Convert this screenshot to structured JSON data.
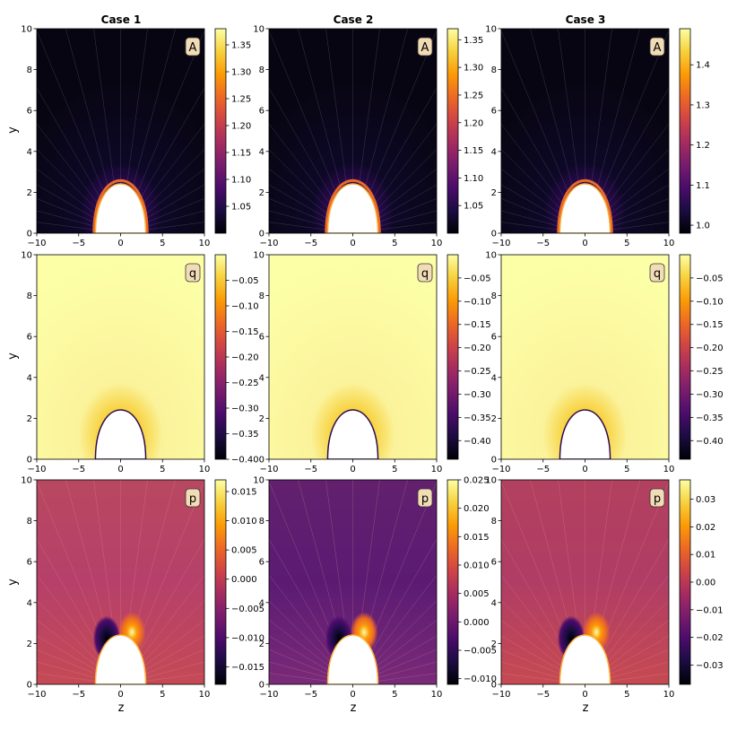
{
  "colors": {
    "bg": "#ffffff",
    "badge_fill": "#f1dcb6",
    "badge_stroke": "#333333",
    "colormap": "inferno"
  },
  "case_titles": [
    "Case 1",
    "Case 2",
    "Case 3"
  ],
  "axis_labels": {
    "y": "y",
    "z": "z"
  },
  "chart_data": [
    {
      "type": "heatmap",
      "case": "Case 1",
      "field": "A",
      "label": "A",
      "xlim": [
        -10,
        10
      ],
      "ylim": [
        0,
        10
      ],
      "xticks": [
        -10,
        -5,
        0,
        5,
        10
      ],
      "yticks": [
        0,
        2,
        4,
        6,
        8,
        10
      ],
      "xlabel": "",
      "ylabel": "y",
      "cbar_range": [
        1.0,
        1.38
      ],
      "cbar_ticks": [
        1.05,
        1.1,
        1.15,
        1.2,
        1.25,
        1.3,
        1.35
      ],
      "cbar_tick_labels": [
        "1.05",
        "1.10",
        "1.15",
        "1.20",
        "1.25",
        "1.30",
        "1.35"
      ],
      "obstacle_height": 3.0,
      "obstacle_half_width": 3.0
    },
    {
      "type": "heatmap",
      "case": "Case 2",
      "field": "A",
      "label": "A",
      "xlim": [
        -10,
        10
      ],
      "ylim": [
        0,
        10
      ],
      "xticks": [
        -10,
        -5,
        0,
        5,
        10
      ],
      "yticks": [
        0,
        2,
        4,
        6,
        8,
        10
      ],
      "xlabel": "",
      "ylabel": "",
      "cbar_range": [
        1.0,
        1.37
      ],
      "cbar_ticks": [
        1.05,
        1.1,
        1.15,
        1.2,
        1.25,
        1.3,
        1.35
      ],
      "cbar_tick_labels": [
        "1.05",
        "1.10",
        "1.15",
        "1.20",
        "1.25",
        "1.30",
        "1.35"
      ],
      "obstacle_height": 3.0,
      "obstacle_half_width": 3.0
    },
    {
      "type": "heatmap",
      "case": "Case 3",
      "field": "A",
      "label": "A",
      "xlim": [
        -10,
        10
      ],
      "ylim": [
        0,
        10
      ],
      "xticks": [
        -10,
        -5,
        0,
        5,
        10
      ],
      "yticks": [
        0,
        2,
        4,
        6,
        8,
        10
      ],
      "xlabel": "",
      "ylabel": "",
      "cbar_range": [
        0.98,
        1.49
      ],
      "cbar_ticks": [
        1.0,
        1.1,
        1.2,
        1.3,
        1.4
      ],
      "cbar_tick_labels": [
        "1.0",
        "1.1",
        "1.2",
        "1.3",
        "1.4"
      ],
      "obstacle_height": 3.0,
      "obstacle_half_width": 3.0
    },
    {
      "type": "heatmap",
      "case": "Case 1",
      "field": "q",
      "label": "q",
      "xlim": [
        -10,
        10
      ],
      "ylim": [
        0,
        10
      ],
      "xticks": [
        -10,
        -5,
        0,
        5,
        10
      ],
      "yticks": [
        0,
        2,
        4,
        6,
        8,
        10
      ],
      "xlabel": "",
      "ylabel": "y",
      "cbar_range": [
        -0.4,
        0.0
      ],
      "cbar_ticks": [
        -0.05,
        -0.1,
        -0.15,
        -0.2,
        -0.25,
        -0.3,
        -0.35,
        -0.4
      ],
      "cbar_tick_labels": [
        "−0.05",
        "−0.10",
        "−0.15",
        "−0.20",
        "−0.25",
        "−0.30",
        "−0.35",
        "−0.40"
      ],
      "obstacle_height": 3.0,
      "obstacle_half_width": 3.0
    },
    {
      "type": "heatmap",
      "case": "Case 2",
      "field": "q",
      "label": "q",
      "xlim": [
        -10,
        10
      ],
      "ylim": [
        0,
        10
      ],
      "xticks": [
        -10,
        -5,
        0,
        5,
        10
      ],
      "yticks": [
        0,
        2,
        4,
        6,
        8,
        10
      ],
      "xlabel": "",
      "ylabel": "",
      "cbar_range": [
        -0.44,
        0.0
      ],
      "cbar_ticks": [
        -0.05,
        -0.1,
        -0.15,
        -0.2,
        -0.25,
        -0.3,
        -0.35,
        -0.4
      ],
      "cbar_tick_labels": [
        "−0.05",
        "−0.10",
        "−0.15",
        "−0.20",
        "−0.25",
        "−0.30",
        "−0.35",
        "−0.40"
      ],
      "obstacle_height": 3.0,
      "obstacle_half_width": 3.0
    },
    {
      "type": "heatmap",
      "case": "Case 3",
      "field": "q",
      "label": "q",
      "xlim": [
        -10,
        10
      ],
      "ylim": [
        0,
        10
      ],
      "xticks": [
        -10,
        -5,
        0,
        5,
        10
      ],
      "yticks": [
        0,
        2,
        4,
        6,
        8,
        10
      ],
      "xlabel": "",
      "ylabel": "",
      "cbar_range": [
        -0.44,
        0.0
      ],
      "cbar_ticks": [
        -0.05,
        -0.1,
        -0.15,
        -0.2,
        -0.25,
        -0.3,
        -0.35,
        -0.4
      ],
      "cbar_tick_labels": [
        "−0.05",
        "−0.10",
        "−0.15",
        "−0.20",
        "−0.25",
        "−0.30",
        "−0.35",
        "−0.40"
      ],
      "obstacle_height": 3.0,
      "obstacle_half_width": 3.0
    },
    {
      "type": "heatmap",
      "case": "Case 1",
      "field": "p",
      "label": "p",
      "xlim": [
        -10,
        10
      ],
      "ylim": [
        0,
        10
      ],
      "xticks": [
        -10,
        -5,
        0,
        5,
        10
      ],
      "yticks": [
        0,
        2,
        4,
        6,
        8,
        10
      ],
      "xlabel": "z",
      "ylabel": "y",
      "cbar_range": [
        -0.018,
        0.017
      ],
      "cbar_ticks": [
        0.015,
        0.01,
        0.005,
        0.0,
        -0.005,
        -0.01,
        -0.015
      ],
      "cbar_tick_labels": [
        "0.015",
        "0.010",
        "0.005",
        "0.000",
        "−0.005",
        "−0.010",
        "−0.015"
      ],
      "obstacle_height": 3.0,
      "obstacle_half_width": 3.0
    },
    {
      "type": "heatmap",
      "case": "Case 2",
      "field": "p",
      "label": "p",
      "xlim": [
        -10,
        10
      ],
      "ylim": [
        0,
        10
      ],
      "xticks": [
        -10,
        -5,
        0,
        5,
        10
      ],
      "yticks": [
        0,
        2,
        4,
        6,
        8,
        10
      ],
      "xlabel": "z",
      "ylabel": "",
      "cbar_range": [
        -0.011,
        0.025
      ],
      "cbar_ticks": [
        0.025,
        0.02,
        0.015,
        0.01,
        0.005,
        0.0,
        -0.005,
        -0.01
      ],
      "cbar_tick_labels": [
        "0.025",
        "0.020",
        "0.015",
        "0.010",
        "0.005",
        "0.000",
        "−0.005",
        "−0.010"
      ],
      "obstacle_height": 3.0,
      "obstacle_half_width": 3.0
    },
    {
      "type": "heatmap",
      "case": "Case 3",
      "field": "p",
      "label": "p",
      "xlim": [
        -10,
        10
      ],
      "ylim": [
        0,
        10
      ],
      "xticks": [
        -10,
        -5,
        0,
        5,
        10
      ],
      "yticks": [
        0,
        2,
        4,
        6,
        8,
        10
      ],
      "xlabel": "z",
      "ylabel": "",
      "cbar_range": [
        -0.037,
        0.037
      ],
      "cbar_ticks": [
        0.03,
        0.02,
        0.01,
        0.0,
        -0.01,
        -0.02,
        -0.03
      ],
      "cbar_tick_labels": [
        "0.03",
        "0.02",
        "0.01",
        "0.00",
        "−0.01",
        "−0.02",
        "−0.03"
      ],
      "obstacle_height": 3.0,
      "obstacle_half_width": 3.0
    }
  ]
}
